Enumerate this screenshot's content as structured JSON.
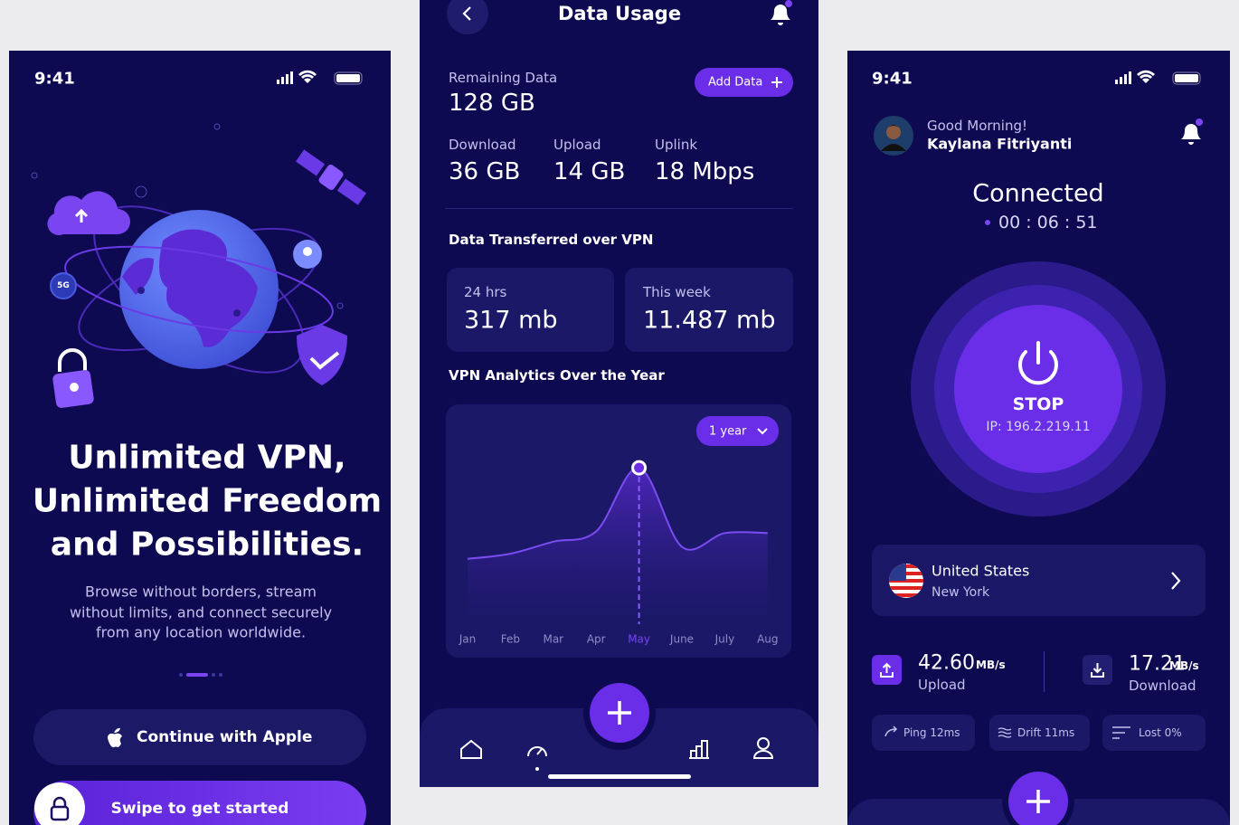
{
  "onboarding": {
    "status_time": "9:41",
    "badge": "5G",
    "headline": [
      "Unlimited VPN,",
      "Unlimited Freedom",
      "and Possibilities."
    ],
    "body": [
      "Browse without borders, stream",
      "without limits, and connect securely",
      "from any location worldwide."
    ],
    "apple_button": "Continue with Apple",
    "swipe_button": "Swipe to get started"
  },
  "data_usage": {
    "title": "Data Usage",
    "remaining": {
      "label": "Remaining Data",
      "value": "128 GB"
    },
    "add_button": "Add Data",
    "stats": [
      {
        "label": "Download",
        "value": "36 GB"
      },
      {
        "label": "Upload",
        "value": "14 GB"
      },
      {
        "label": "Uplink",
        "value": "18 Mbps"
      }
    ],
    "transferred_title": "Data Transferred over VPN",
    "cards": [
      {
        "label": "24 hrs",
        "value": "317 mb"
      },
      {
        "label": "This week",
        "value": "11.487 mb"
      }
    ],
    "analytics_title": "VPN Analytics Over the Year",
    "chart": {
      "type": "area",
      "period": "1 year",
      "categories": [
        "Jan",
        "Feb",
        "Mar",
        "Apr",
        "May",
        "June",
        "July",
        "Aug"
      ],
      "values": [
        38,
        41,
        48,
        54,
        91,
        45,
        53,
        53
      ],
      "ylim": [
        0,
        100
      ],
      "color": "#7a4cf2",
      "highlight_index": 4
    }
  },
  "home": {
    "status_time": "9:41",
    "greeting": "Good Morning!",
    "user_name": "Kaylana Fitriyanti",
    "status": "Connected",
    "timer": "00 : 06 : 51",
    "stop": "STOP",
    "ip": "IP: 196.2.219.11",
    "location": {
      "country": "United States",
      "city": "New York"
    },
    "upload": {
      "value": "42.60",
      "unit": "MB/s",
      "label": "Upload"
    },
    "download": {
      "value": "17.21",
      "unit": "MB/s",
      "label": "Download"
    },
    "metrics": [
      "Ping 12ms",
      "Drift 11ms",
      "Lost 0%"
    ]
  }
}
